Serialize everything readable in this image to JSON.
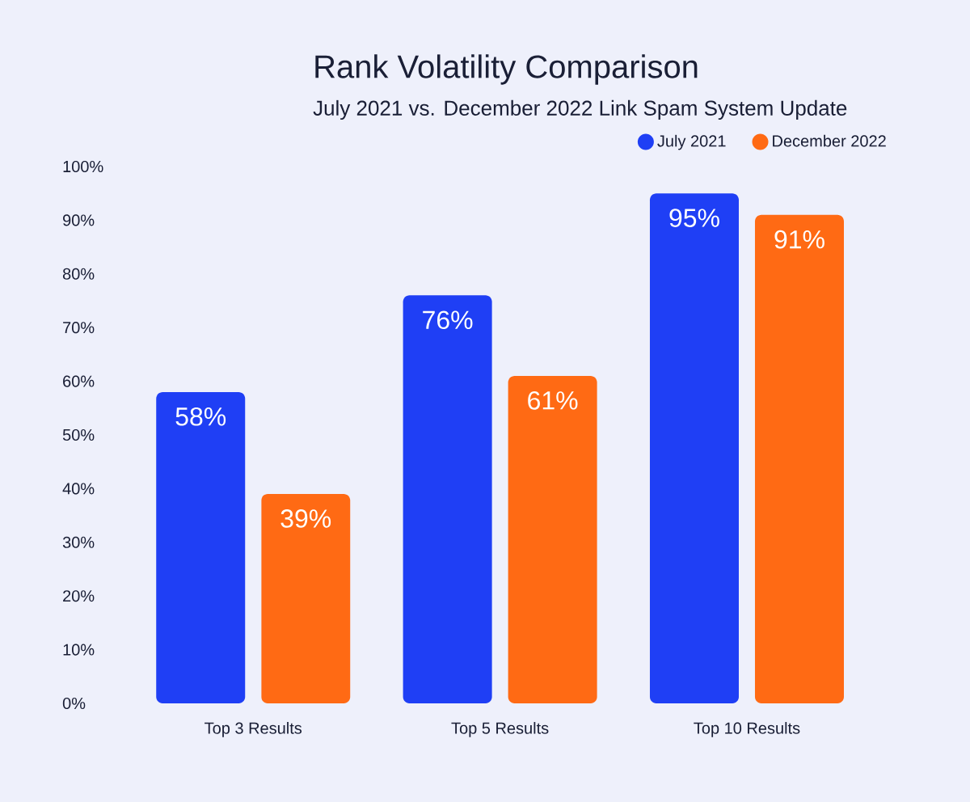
{
  "chart_data": {
    "type": "bar",
    "title": "Rank Volatility Comparison",
    "subtitle": "July 2021 vs. December 2022 Link Spam System Update",
    "categories": [
      "Top 3 Results",
      "Top 5 Results",
      "Top 10 Results"
    ],
    "series": [
      {
        "name": "July 2021",
        "color": "#1f3ff5",
        "values": [
          58,
          76,
          95
        ],
        "value_labels": [
          "58%",
          "76%",
          "95%"
        ]
      },
      {
        "name": "December 2022",
        "color": "#ff6a14",
        "values": [
          39,
          61,
          91
        ],
        "value_labels": [
          "39%",
          "61%",
          "91%"
        ]
      }
    ],
    "ylim": [
      0,
      100
    ],
    "yticks": [
      {
        "value": 0,
        "label": "0%"
      },
      {
        "value": 10,
        "label": "10%"
      },
      {
        "value": 20,
        "label": "20%"
      },
      {
        "value": 30,
        "label": "30%"
      },
      {
        "value": 40,
        "label": "40%"
      },
      {
        "value": 50,
        "label": "50%"
      },
      {
        "value": 60,
        "label": "60%"
      },
      {
        "value": 70,
        "label": "70%"
      },
      {
        "value": 80,
        "label": "80%"
      },
      {
        "value": 90,
        "label": "90%"
      },
      {
        "value": 100,
        "label": "100%"
      }
    ],
    "legend": "top right",
    "grid": false
  }
}
